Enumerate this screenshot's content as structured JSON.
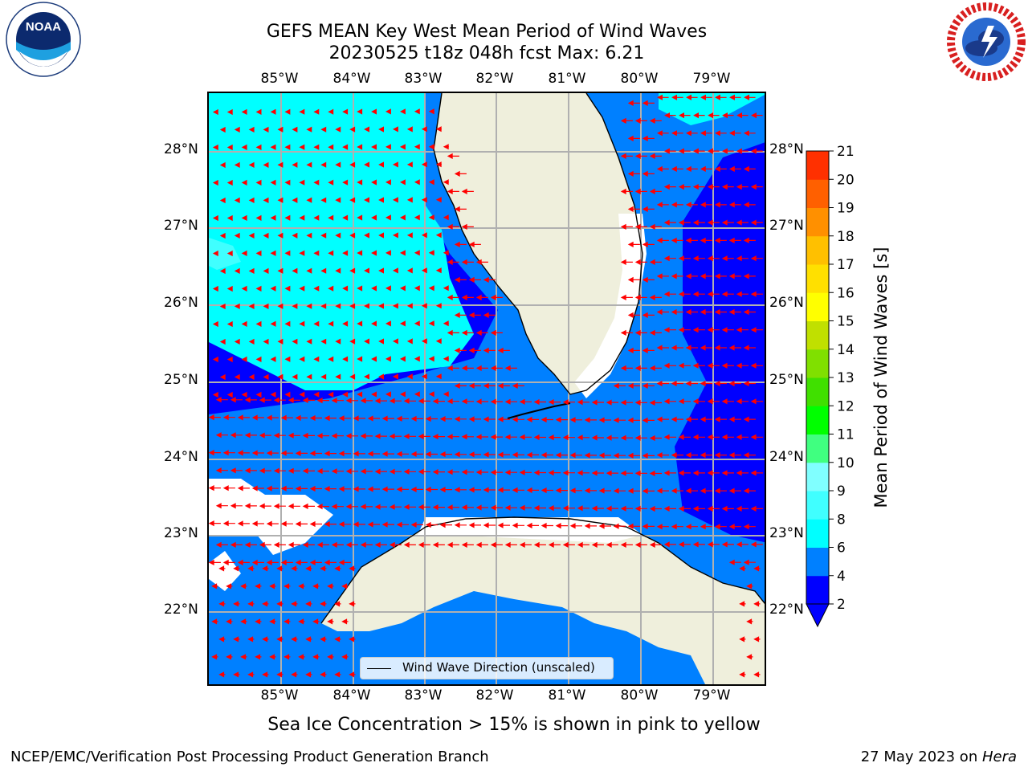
{
  "title_line1": "GEFS MEAN Key West Mean Period of Wind Waves",
  "title_line2": "20230525 t18z 048h fcst   Max: 6.21",
  "lon_labels": [
    "85°W",
    "84°W",
    "83°W",
    "82°W",
    "81°W",
    "80°W",
    "79°W"
  ],
  "lat_labels": [
    "28°N",
    "27°N",
    "26°N",
    "25°N",
    "24°N",
    "23°N",
    "22°N"
  ],
  "legend": {
    "label": "Wind Wave Direction (unscaled)"
  },
  "colorbar": {
    "label": "Mean Period of Wind Waves [s]",
    "ticks": [
      "2",
      "4",
      "6",
      "8",
      "9",
      "10",
      "11",
      "12",
      "13",
      "14",
      "15",
      "16",
      "17",
      "18",
      "19",
      "20",
      "21"
    ],
    "colors": [
      "#0000ff",
      "#0080ff",
      "#00ffff",
      "#40ffff",
      "#80ffff",
      "#40ff80",
      "#00ff00",
      "#40e000",
      "#80e000",
      "#c0e000",
      "#ffff00",
      "#ffe000",
      "#ffc000",
      "#ff9000",
      "#ff6000",
      "#ff3000",
      "#ff0000"
    ],
    "under_color": "#0000ff"
  },
  "sea_ice_note": "Sea Ice Concentration > 15% is shown in pink to yellow",
  "footer_left": "NCEP/EMC/Verification Post Processing Product Generation Branch",
  "footer_date": "27 May 2023 on ",
  "footer_machine": "Hera",
  "logos": {
    "noaa": {
      "text": "NOAA",
      "ring_text": "NATIONAL OCEANIC AND ATMOSPHERIC ADMINISTRATION · U.S. DEPARTMENT OF COMMERCE"
    },
    "nws": {
      "ring_text": "NATIONAL WEATHER SERVICE"
    }
  },
  "map_colors": {
    "deep": "#0000ff",
    "mid": "#0080ff",
    "light": "#00ffff",
    "lighter": "#40ffff",
    "land": "#efefdc",
    "missing": "#ffffff",
    "arrow": "#ff0000",
    "grid": "#b0b0b0"
  }
}
